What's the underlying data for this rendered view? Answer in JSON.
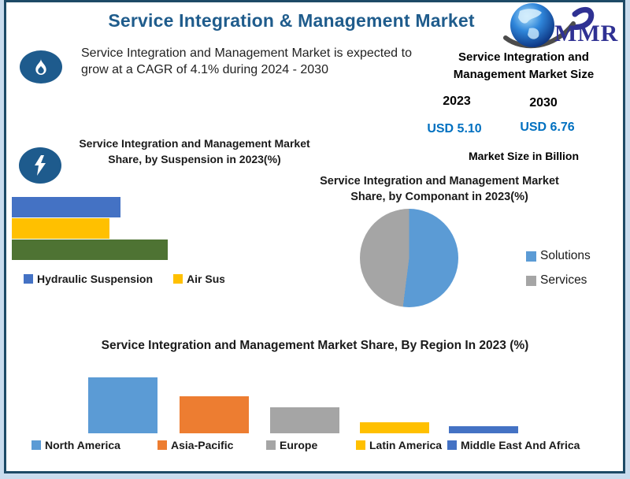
{
  "header": {
    "title": "Service Integration & Management Market",
    "logo_text": "MMR"
  },
  "highlight": {
    "growth_text": "Service Integration and Management Market is expected to grow at a CAGR of 4.1% during 2024 - 2030"
  },
  "market_size": {
    "title": "Service Integration and\nManagement Market Size",
    "year_start": "2023",
    "year_end": "2030",
    "value_start": "USD 5.10",
    "value_end": "USD 6.76",
    "value_color": "#0070C0",
    "caption": "Market Size in Billion"
  },
  "chart_data": [
    {
      "id": "suspension-share",
      "type": "bar",
      "orientation": "horizontal",
      "title": "Service Integration and Management Market\nShare, by Suspension in 2023(%)",
      "categories": [
        "Hydraulic Suspension",
        "Air Susper",
        ""
      ],
      "values": [
        30,
        27,
        43
      ],
      "colors": [
        "#4472C4",
        "#FFC000",
        "#4E7333"
      ],
      "legend": [
        {
          "label": "Hydraulic Suspension",
          "color": "#4472C4"
        },
        {
          "label": "Air Susper",
          "color": "#FFC000"
        }
      ],
      "legend_position": "bottom",
      "grid": false,
      "axes_visible": false
    },
    {
      "id": "component-share",
      "type": "pie",
      "title": "Service Integration and Management Market\nShare, by Componant in 2023(%)",
      "slices": [
        {
          "label": "Solutions",
          "value": 52,
          "color": "#5B9BD5"
        },
        {
          "label": "Services",
          "value": 48,
          "color": "#A5A5A5"
        }
      ],
      "legend_position": "right",
      "start_angle_deg": 0,
      "direction": "clockwise"
    },
    {
      "id": "region-share",
      "type": "bar",
      "orientation": "vertical",
      "title": "Service Integration and Management Market Share, By Region In 2023 (%)",
      "categories": [
        "North America",
        "Asia-Pacific",
        "Europe",
        "Latin America",
        "Middle East And Africa"
      ],
      "values": [
        41,
        27,
        19,
        8,
        5
      ],
      "colors": [
        "#5B9BD5",
        "#ED7D31",
        "#A5A5A5",
        "#FFC000",
        "#4472C4"
      ],
      "legend_position": "bottom",
      "grid": false,
      "axes_visible": false
    }
  ]
}
